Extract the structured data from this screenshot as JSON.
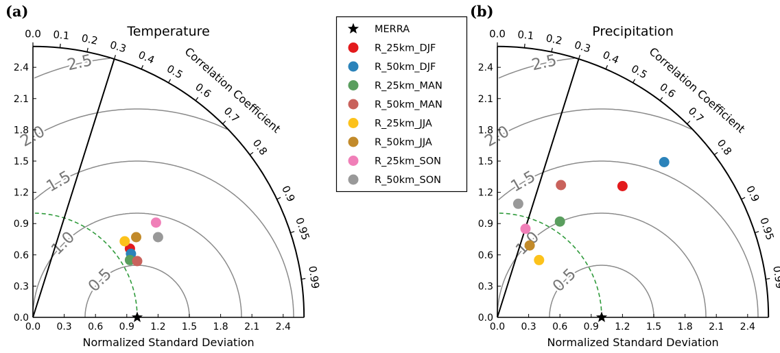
{
  "legend": {
    "items": [
      {
        "label": "MERRA",
        "color": "#000000",
        "marker": "star"
      },
      {
        "label": "R_25km_DJF",
        "color": "#e31a1c",
        "marker": "circle"
      },
      {
        "label": "R_50km_DJF",
        "color": "#2b83ba",
        "marker": "circle"
      },
      {
        "label": "R_25km_MAN",
        "color": "#5a9e5e",
        "marker": "circle"
      },
      {
        "label": "R_50km_MAN",
        "color": "#c9625c",
        "marker": "circle"
      },
      {
        "label": "R_25km_JJA",
        "color": "#fcc21b",
        "marker": "circle"
      },
      {
        "label": "R_50km_JJA",
        "color": "#c28a2a",
        "marker": "circle"
      },
      {
        "label": "R_25km_SON",
        "color": "#f07fb8",
        "marker": "circle"
      },
      {
        "label": "R_50km_SON",
        "color": "#999999",
        "marker": "circle"
      }
    ]
  },
  "chart_data": [
    {
      "type": "scatter",
      "subtype": "taylor-diagram",
      "panel_label": "(a)",
      "title": "Temperature",
      "xlabel": "Normalized Standard Deviation",
      "corr_label": "Correlation Coefficient",
      "std_range": [
        0,
        2.6
      ],
      "std_ticks": [
        "0.0",
        "0.3",
        "0.6",
        "0.9",
        "1.2",
        "1.5",
        "1.8",
        "2.1",
        "2.4"
      ],
      "corr_ticks": [
        "0.0",
        "0.1",
        "0.2",
        "0.3",
        "0.4",
        "0.5",
        "0.6",
        "0.7",
        "0.8",
        "0.9",
        "0.95",
        "0.99"
      ],
      "rms_contours": [
        "0.5",
        "1.0",
        "1.5",
        "2.0",
        "2.5"
      ],
      "reference_line_corr": 0.3,
      "reference": {
        "name": "MERRA",
        "x": 1.0,
        "y": 0.0
      },
      "series": [
        {
          "name": "R_25km_DJF",
          "x": 0.93,
          "y": 0.66
        },
        {
          "name": "R_50km_DJF",
          "x": 0.94,
          "y": 0.61
        },
        {
          "name": "R_25km_MAN",
          "x": 0.93,
          "y": 0.55
        },
        {
          "name": "R_50km_MAN",
          "x": 1.0,
          "y": 0.54
        },
        {
          "name": "R_25km_JJA",
          "x": 0.88,
          "y": 0.73
        },
        {
          "name": "R_50km_JJA",
          "x": 0.99,
          "y": 0.77
        },
        {
          "name": "R_25km_SON",
          "x": 1.18,
          "y": 0.91
        },
        {
          "name": "R_50km_SON",
          "x": 1.2,
          "y": 0.77
        }
      ]
    },
    {
      "type": "scatter",
      "subtype": "taylor-diagram",
      "panel_label": "(b)",
      "title": "Precipitation",
      "xlabel": "Normalized Standard Deviation",
      "corr_label": "Correlation Coefficient",
      "std_range": [
        0,
        2.6
      ],
      "std_ticks": [
        "0.0",
        "0.3",
        "0.6",
        "0.9",
        "1.2",
        "1.5",
        "1.8",
        "2.1",
        "2.4"
      ],
      "corr_ticks": [
        "0.0",
        "0.1",
        "0.2",
        "0.3",
        "0.4",
        "0.5",
        "0.6",
        "0.7",
        "0.8",
        "0.9",
        "0.95",
        "0.99"
      ],
      "rms_contours": [
        "0.5",
        "1.0",
        "1.5",
        "2.0",
        "2.5"
      ],
      "reference_line_corr": 0.3,
      "reference": {
        "name": "MERRA",
        "x": 1.0,
        "y": 0.0
      },
      "series": [
        {
          "name": "R_25km_DJF",
          "x": 1.2,
          "y": 1.26
        },
        {
          "name": "R_50km_DJF",
          "x": 1.6,
          "y": 1.49
        },
        {
          "name": "R_25km_MAN",
          "x": 0.6,
          "y": 0.92
        },
        {
          "name": "R_50km_MAN",
          "x": 0.61,
          "y": 1.27
        },
        {
          "name": "R_25km_JJA",
          "x": 0.4,
          "y": 0.55
        },
        {
          "name": "R_50km_JJA",
          "x": 0.31,
          "y": 0.69
        },
        {
          "name": "R_25km_SON",
          "x": 0.27,
          "y": 0.85
        },
        {
          "name": "R_50km_SON",
          "x": 0.2,
          "y": 1.09
        }
      ]
    }
  ]
}
